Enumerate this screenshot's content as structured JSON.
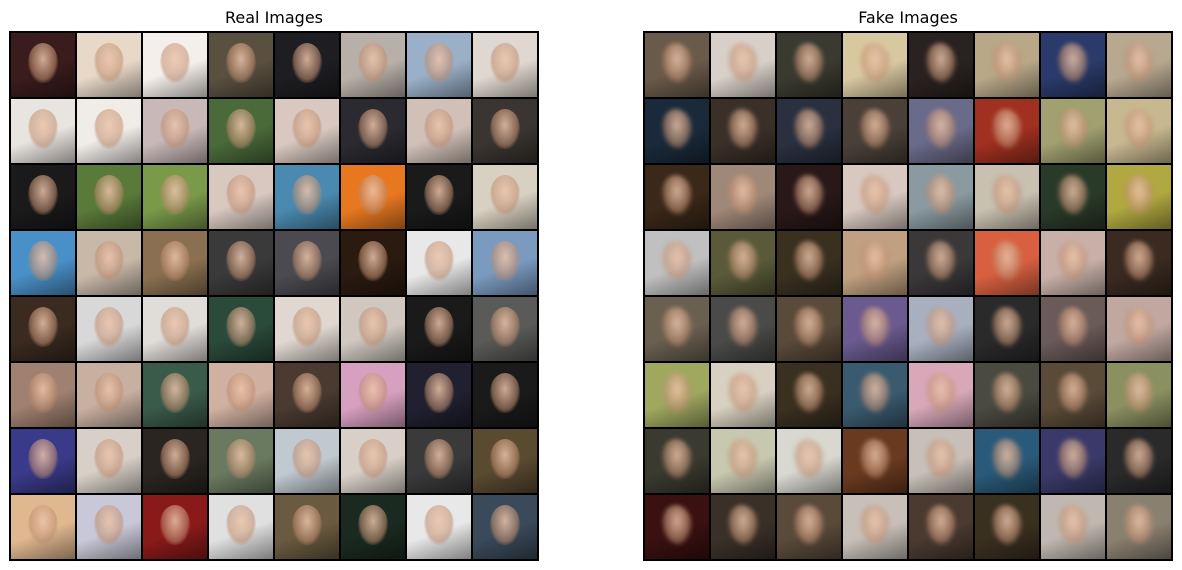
{
  "panels": {
    "real": {
      "title": "Real Images",
      "grid": {
        "rows": 8,
        "cols": 8
      },
      "tile_colors": [
        "#3a1c1c",
        "#e8d8c8",
        "#f4efea",
        "#5a5040",
        "#1e1e22",
        "#b8b0a8",
        "#9ab0c8",
        "#e0d8d0",
        "#e8e4e0",
        "#f0ece8",
        "#c8b8b8",
        "#4a6a3a",
        "#d8c8c0",
        "#2a2a30",
        "#d0c0b8",
        "#3a3530",
        "#1a1a1a",
        "#5a7a3a",
        "#7a9a4a",
        "#d8c8c0",
        "#4a8ab0",
        "#e87820",
        "#1a1a1a",
        "#d8d0c0",
        "#4a90c8",
        "#c8b8a8",
        "#8a7050",
        "#3a3a3a",
        "#4a4a50",
        "#2a1a10",
        "#e8e8e8",
        "#7a9ac0",
        "#3a2a20",
        "#d8d8d8",
        "#e0dcd8",
        "#2a4a3a",
        "#e0d8d0",
        "#d0c8c0",
        "#1a1a1a",
        "#5a5a58",
        "#a08070",
        "#c8b0a0",
        "#3a5a4a",
        "#d0b0a0",
        "#4a3a30",
        "#d8a0c0",
        "#202030",
        "#1a1a1a",
        "#3a3a8a",
        "#d8d0c8",
        "#2a2520",
        "#6a7a60",
        "#c0c8d0",
        "#d8d0c8",
        "#3a3a3a",
        "#5a4a30",
        "#e0b890",
        "#c8c8d8",
        "#8a1a1a",
        "#e0e0e0",
        "#6a5a40",
        "#1a2a20",
        "#e8e8e8",
        "#3a4a5a"
      ]
    },
    "fake": {
      "title": "Fake Images",
      "grid": {
        "rows": 8,
        "cols": 8
      },
      "tile_colors": [
        "#6a5a4a",
        "#d8d0c8",
        "#3a3a30",
        "#d8c8a0",
        "#2a2220",
        "#b8a888",
        "#2a3a6a",
        "#b8a890",
        "#1a2a3a",
        "#3a3028",
        "#2a3040",
        "#4a4038",
        "#6a6a8a",
        "#a03020",
        "#a0a070",
        "#c8b890",
        "#3a2818",
        "#a08878",
        "#2a1818",
        "#d8c8c0",
        "#8a9aa0",
        "#c8c0b0",
        "#2a3a28",
        "#b0a840",
        "#c0c0c0",
        "#5a5a3a",
        "#3a3020",
        "#c0a080",
        "#3a3838",
        "#d86040",
        "#c8b0a8",
        "#3a2a20",
        "#6a6050",
        "#4a4a48",
        "#5a4a3a",
        "#6a5a90",
        "#a8b0c0",
        "#2a2a2a",
        "#6a5a58",
        "#c0a8a0",
        "#a0a860",
        "#d8d0c0",
        "#3a3020",
        "#3a5a70",
        "#d8a8b8",
        "#4a4a40",
        "#5a4a38",
        "#8a9060",
        "#3a3a30",
        "#c8c8b0",
        "#d8d8d0",
        "#6a3a20",
        "#c8c0b8",
        "#2a5a7a",
        "#3a3a6a",
        "#2a2a2a",
        "#3a1010",
        "#3a3028",
        "#5a4a3a",
        "#c8c0b8",
        "#4a3a30",
        "#3a3020",
        "#c0b8b0",
        "#8a8070"
      ]
    }
  }
}
